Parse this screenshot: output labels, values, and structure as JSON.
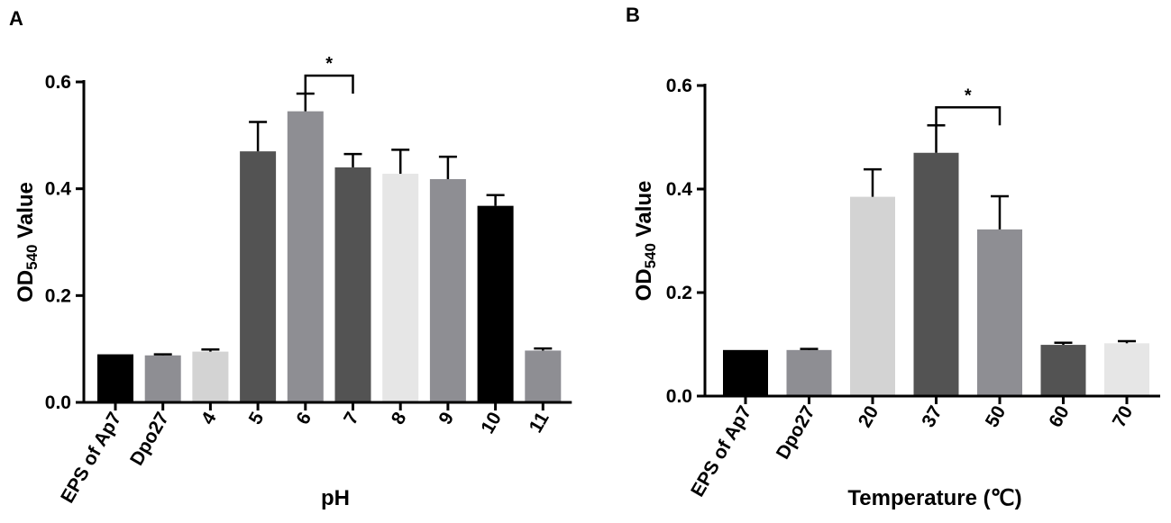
{
  "chart_data": [
    {
      "type": "bar",
      "panel_label": "A",
      "title": "",
      "xlabel": "pH",
      "ylabel": "OD",
      "ylabel_sub": "540",
      "ylabel_suffix": " Value",
      "ylim": [
        0,
        0.6
      ],
      "yticks": [
        "0.0",
        "0.2",
        "0.4",
        "0.6"
      ],
      "categories": [
        "EPS of Ap7",
        "Dpo27",
        "4",
        "5",
        "6",
        "7",
        "8",
        "9",
        "10",
        "11"
      ],
      "values": [
        0.09,
        0.088,
        0.095,
        0.47,
        0.545,
        0.44,
        0.428,
        0.418,
        0.368,
        0.097
      ],
      "errors": [
        0.0,
        0.002,
        0.004,
        0.055,
        0.033,
        0.025,
        0.045,
        0.042,
        0.02,
        0.004
      ],
      "colors": [
        "#000000",
        "#8e8e93",
        "#d3d3d3",
        "#535353",
        "#8e8e93",
        "#535353",
        "#e6e6e6",
        "#8e8e93",
        "#000000",
        "#8e8e93"
      ],
      "significance": {
        "from": "6",
        "to": "7",
        "label": "*"
      }
    },
    {
      "type": "bar",
      "panel_label": "B",
      "title": "",
      "xlabel": "Temperature (℃)",
      "ylabel": "OD",
      "ylabel_sub": "540",
      "ylabel_suffix": " Value",
      "ylim": [
        0,
        0.6
      ],
      "yticks": [
        "0.0",
        "0.2",
        "0.4",
        "0.6"
      ],
      "categories": [
        "EPS of Ap7",
        "Dpo27",
        "20",
        "37",
        "50",
        "60",
        "70"
      ],
      "values": [
        0.089,
        0.089,
        0.385,
        0.47,
        0.322,
        0.099,
        0.102
      ],
      "errors": [
        0.0,
        0.002,
        0.053,
        0.053,
        0.064,
        0.004,
        0.004
      ],
      "colors": [
        "#000000",
        "#8e8e93",
        "#d3d3d3",
        "#535353",
        "#8e8e93",
        "#535353",
        "#e6e6e6"
      ],
      "significance": {
        "from": "37",
        "to": "50",
        "label": "*"
      }
    }
  ]
}
